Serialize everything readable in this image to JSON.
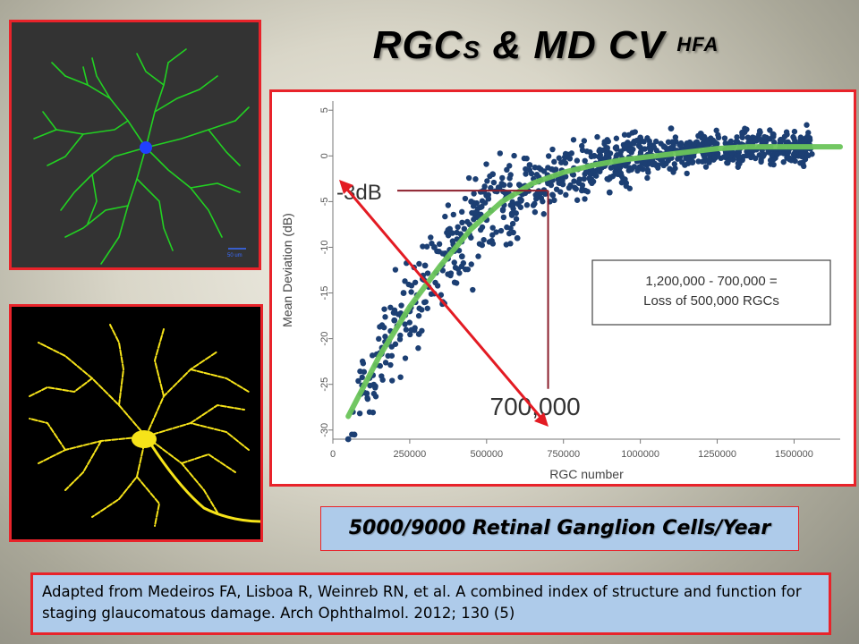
{
  "slide": {
    "title": "RGC",
    "title_sub": "S",
    "title_amp": "& MD CV",
    "title_sup": "HFA",
    "caption": "5000/9000 Retinal Ganglion Cells/Year",
    "citation": "Adapted from Medeiros FA, Lisboa R, Weinreb RN, et al. A combined index of structure and function for staging glaucomatous damage.  Arch Ophthalmol. 2012; 130 (5)",
    "scale_bar_label": "50 um"
  },
  "colors": {
    "border": "#e8232a",
    "caption_bg": "#aecbea",
    "scatter": "#1c3f73",
    "trend": "#6ac45a",
    "arrow": "#e31b23",
    "reference": "#8b1e2b",
    "neuron_green": "#22d122",
    "neuron_yellow": "#f6e319"
  },
  "chart_data": {
    "type": "scatter",
    "xlabel": "RGC number",
    "ylabel": "Mean Deviation (dB)",
    "xlim": [
      0,
      1650000
    ],
    "ylim": [
      -31,
      6
    ],
    "x_ticks": [
      0,
      250000,
      500000,
      750000,
      1000000,
      1250000,
      1500000
    ],
    "x_tick_labels": [
      "0",
      "250000",
      "500000",
      "750000",
      "1000000",
      "1250000",
      "1500000"
    ],
    "y_ticks": [
      5,
      0,
      -5,
      -10,
      -15,
      -20,
      -25,
      -30
    ],
    "y_tick_labels": [
      "5",
      "0",
      "-5",
      "-10",
      "-15",
      "-20",
      "-25",
      "-30"
    ],
    "trend_curve": {
      "x": [
        50000,
        150000,
        250000,
        350000,
        450000,
        550000,
        650000,
        750000,
        850000,
        950000,
        1050000,
        1150000,
        1250000,
        1350000,
        1450000,
        1550000,
        1650000
      ],
      "y": [
        -28.5,
        -22,
        -16.5,
        -12,
        -8,
        -5,
        -3,
        -1.8,
        -1,
        -0.4,
        0,
        0.4,
        0.8,
        1,
        1,
        1,
        1
      ]
    },
    "scatter_points_approx": {
      "note_points": [
        [
          50000,
          -31
        ],
        [
          70000,
          -30.5
        ],
        [
          110000,
          -26
        ],
        [
          130000,
          -24
        ],
        [
          160000,
          -21
        ],
        [
          200000,
          -18
        ],
        [
          230000,
          -15
        ],
        [
          250000,
          -17
        ],
        [
          280000,
          -19.5
        ],
        [
          300000,
          -12
        ],
        [
          330000,
          -10
        ],
        [
          380000,
          -8
        ],
        [
          420000,
          -11
        ],
        [
          450000,
          -5
        ],
        [
          500000,
          -7
        ],
        [
          520000,
          -2
        ],
        [
          560000,
          -4
        ],
        [
          600000,
          -9
        ],
        [
          640000,
          -1
        ],
        [
          700000,
          -3
        ],
        [
          780000,
          -2
        ],
        [
          850000,
          0
        ],
        [
          900000,
          -4
        ],
        [
          950000,
          1
        ],
        [
          1000000,
          2
        ],
        [
          1050000,
          -1
        ],
        [
          1100000,
          3
        ],
        [
          1150000,
          1
        ],
        [
          1200000,
          2
        ],
        [
          1280000,
          0
        ],
        [
          1350000,
          2
        ],
        [
          1400000,
          1
        ],
        [
          1480000,
          1.5
        ],
        [
          1550000,
          1.2
        ]
      ]
    },
    "annotations": {
      "db_label": "-3dB",
      "rgc_label": "700,000",
      "box_line1": "1,200,000 - 700,000 =",
      "box_line2": "Loss of 500,000 RGCs",
      "ref_y": -3.8,
      "ref_x": 700000
    }
  }
}
